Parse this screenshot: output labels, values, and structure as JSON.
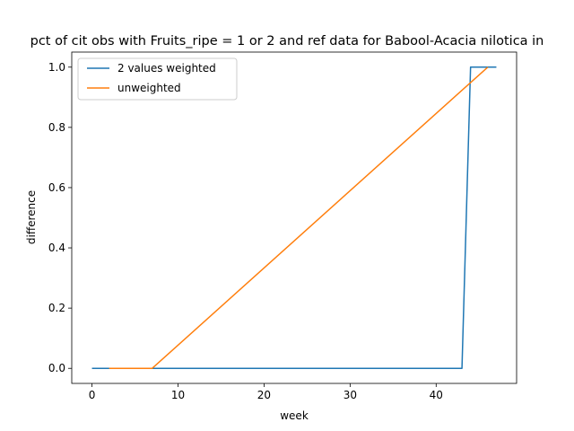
{
  "chart_data": {
    "type": "line",
    "title": "pct of cit obs with Fruits_ripe = 1 or 2 and ref data for Babool-Acacia nilotica in",
    "xlabel": "week",
    "ylabel": "difference",
    "xlim": [
      -2.35,
      49.35
    ],
    "ylim": [
      -0.05,
      1.05
    ],
    "xticks": [
      0,
      10,
      20,
      30,
      40
    ],
    "yticks": [
      0.0,
      0.2,
      0.4,
      0.6,
      0.8,
      1.0
    ],
    "xtick_labels": [
      "0",
      "10",
      "20",
      "30",
      "40"
    ],
    "ytick_labels": [
      "0.0",
      "0.2",
      "0.4",
      "0.6",
      "0.8",
      "1.0"
    ],
    "grid": false,
    "legend": "top-left",
    "series": [
      {
        "name": "2 values weighted",
        "color": "#1f77b4",
        "x": [
          0,
          43,
          44,
          47
        ],
        "y": [
          0,
          0,
          1,
          1
        ]
      },
      {
        "name": "unweighted",
        "color": "#ff7f0e",
        "x": [
          2,
          7,
          46
        ],
        "y": [
          0,
          0,
          1
        ]
      }
    ]
  }
}
